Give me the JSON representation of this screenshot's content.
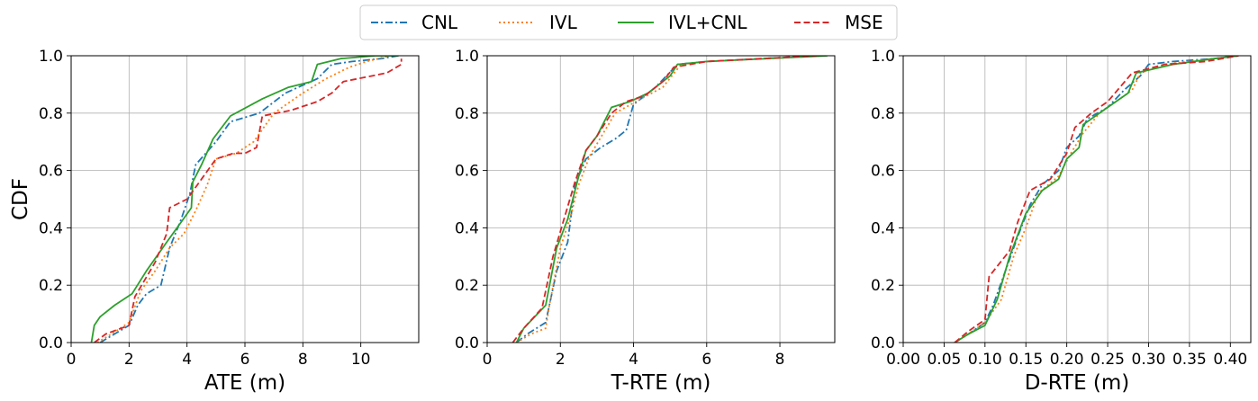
{
  "legend": {
    "placement": "top-center",
    "entries": [
      {
        "label": "CNL",
        "color": "#1f77b4",
        "dash": "dashdot"
      },
      {
        "label": "IVL",
        "color": "#ff7f0e",
        "dash": "dotted"
      },
      {
        "label": "IVL+CNL",
        "color": "#2ca02c",
        "dash": "solid"
      },
      {
        "label": "MSE",
        "color": "#d62728",
        "dash": "dashed"
      }
    ]
  },
  "chart_data": [
    {
      "type": "line",
      "xlabel": "ATE (m)",
      "ylabel": "CDF",
      "xlim": [
        0,
        12
      ],
      "ylim": [
        0,
        1.0
      ],
      "xticks": [
        "0",
        "2",
        "4",
        "6",
        "8",
        "10"
      ],
      "yticks": [
        "0.0",
        "0.2",
        "0.4",
        "0.6",
        "0.8",
        "1.0"
      ],
      "grid": true,
      "series": [
        {
          "name": "CNL",
          "x": [
            1.0,
            1.5,
            2.0,
            2.3,
            2.6,
            3.1,
            3.4,
            3.8,
            4.1,
            4.3,
            5.0,
            5.5,
            6.5,
            7.4,
            8.5,
            9.0,
            9.7,
            10.7,
            11.3
          ],
          "y": [
            0.0,
            0.03,
            0.06,
            0.13,
            0.17,
            0.2,
            0.33,
            0.43,
            0.52,
            0.62,
            0.7,
            0.77,
            0.8,
            0.87,
            0.92,
            0.97,
            0.98,
            0.99,
            1.0
          ]
        },
        {
          "name": "IVL",
          "x": [
            0.9,
            1.4,
            2.0,
            2.4,
            2.9,
            3.4,
            3.9,
            4.3,
            4.7,
            5.0,
            5.7,
            6.3,
            7.0,
            8.0,
            8.8,
            9.6,
            10.2,
            11.0
          ],
          "y": [
            0.0,
            0.03,
            0.07,
            0.18,
            0.25,
            0.33,
            0.38,
            0.46,
            0.55,
            0.64,
            0.66,
            0.7,
            0.8,
            0.87,
            0.92,
            0.96,
            0.98,
            1.0
          ]
        },
        {
          "name": "IVL+CNL",
          "x": [
            0.7,
            0.8,
            1.0,
            1.5,
            2.1,
            2.6,
            3.3,
            3.8,
            4.15,
            4.2,
            4.5,
            4.9,
            5.5,
            6.6,
            7.5,
            8.3,
            8.5,
            9.3,
            10.5,
            11.3
          ],
          "y": [
            0.0,
            0.06,
            0.09,
            0.13,
            0.17,
            0.25,
            0.35,
            0.42,
            0.47,
            0.56,
            0.62,
            0.71,
            0.79,
            0.85,
            0.89,
            0.91,
            0.97,
            0.99,
            1.0,
            1.0
          ]
        },
        {
          "name": "MSE",
          "x": [
            0.8,
            1.2,
            2.0,
            2.2,
            2.9,
            3.3,
            3.4,
            4.0,
            4.5,
            5.0,
            5.6,
            6.0,
            6.4,
            6.6,
            7.6,
            8.5,
            9.0,
            9.4,
            10.9,
            11.4,
            11.4
          ],
          "y": [
            0.0,
            0.03,
            0.06,
            0.16,
            0.28,
            0.38,
            0.47,
            0.5,
            0.57,
            0.64,
            0.66,
            0.66,
            0.68,
            0.79,
            0.81,
            0.84,
            0.87,
            0.91,
            0.94,
            0.97,
            0.99
          ]
        }
      ]
    },
    {
      "type": "line",
      "xlabel": "T-RTE (m)",
      "ylabel": "",
      "xlim": [
        0,
        9.5
      ],
      "ylim": [
        0,
        1.0
      ],
      "xticks": [
        "0",
        "2",
        "4",
        "6",
        "8"
      ],
      "yticks": [
        "0.0",
        "0.2",
        "0.4",
        "0.6",
        "0.8",
        "1.0"
      ],
      "grid": true,
      "series": [
        {
          "name": "CNL",
          "x": [
            0.8,
            1.1,
            1.6,
            1.9,
            2.2,
            2.4,
            2.7,
            3.1,
            3.5,
            3.8,
            4.0,
            4.2,
            4.6,
            5.2,
            6.0,
            9.0
          ],
          "y": [
            0.0,
            0.03,
            0.07,
            0.25,
            0.35,
            0.55,
            0.64,
            0.68,
            0.71,
            0.74,
            0.83,
            0.85,
            0.89,
            0.97,
            0.98,
            1.0
          ]
        },
        {
          "name": "IVL",
          "x": [
            0.8,
            1.2,
            1.6,
            1.7,
            2.0,
            2.3,
            2.5,
            2.8,
            3.5,
            4.2,
            4.8,
            5.3,
            6.0,
            9.2
          ],
          "y": [
            0.0,
            0.03,
            0.05,
            0.13,
            0.33,
            0.45,
            0.55,
            0.65,
            0.8,
            0.85,
            0.89,
            0.97,
            0.98,
            1.0
          ]
        },
        {
          "name": "IVL+CNL",
          "x": [
            0.8,
            1.0,
            1.6,
            1.9,
            2.2,
            2.5,
            2.7,
            3.0,
            3.4,
            3.9,
            4.4,
            5.0,
            5.2,
            6.0,
            9.3
          ],
          "y": [
            0.0,
            0.05,
            0.13,
            0.33,
            0.43,
            0.58,
            0.67,
            0.72,
            0.82,
            0.84,
            0.87,
            0.93,
            0.97,
            0.98,
            1.0
          ]
        },
        {
          "name": "MSE",
          "x": [
            0.7,
            1.0,
            1.5,
            1.8,
            2.1,
            2.4,
            2.7,
            3.0,
            3.4,
            3.8,
            4.3,
            4.8,
            5.1,
            6.0,
            9.0
          ],
          "y": [
            0.0,
            0.05,
            0.12,
            0.3,
            0.43,
            0.56,
            0.67,
            0.72,
            0.8,
            0.84,
            0.86,
            0.91,
            0.96,
            0.98,
            1.0
          ]
        }
      ]
    },
    {
      "type": "line",
      "xlabel": "D-RTE (m)",
      "ylabel": "",
      "xlim": [
        0.0,
        0.425
      ],
      "ylim": [
        0,
        1.0
      ],
      "xticks": [
        "0.00",
        "0.05",
        "0.10",
        "0.15",
        "0.20",
        "0.25",
        "0.30",
        "0.35",
        "0.40"
      ],
      "yticks": [
        "0.0",
        "0.2",
        "0.4",
        "0.6",
        "0.8",
        "1.0"
      ],
      "grid": true,
      "series": [
        {
          "name": "CNL",
          "x": [
            0.063,
            0.08,
            0.1,
            0.11,
            0.125,
            0.14,
            0.155,
            0.17,
            0.19,
            0.2,
            0.215,
            0.225,
            0.25,
            0.27,
            0.29,
            0.3,
            0.33,
            0.38,
            0.41
          ],
          "y": [
            0.0,
            0.03,
            0.07,
            0.13,
            0.25,
            0.37,
            0.48,
            0.55,
            0.6,
            0.68,
            0.72,
            0.78,
            0.82,
            0.88,
            0.93,
            0.97,
            0.98,
            0.99,
            1.0
          ]
        },
        {
          "name": "IVL",
          "x": [
            0.063,
            0.085,
            0.1,
            0.12,
            0.135,
            0.15,
            0.165,
            0.19,
            0.205,
            0.22,
            0.24,
            0.26,
            0.28,
            0.29,
            0.32,
            0.38,
            0.41
          ],
          "y": [
            0.0,
            0.04,
            0.07,
            0.15,
            0.3,
            0.4,
            0.52,
            0.58,
            0.66,
            0.73,
            0.8,
            0.84,
            0.88,
            0.94,
            0.97,
            0.99,
            1.0
          ]
        },
        {
          "name": "IVL+CNL",
          "x": [
            0.063,
            0.08,
            0.1,
            0.115,
            0.13,
            0.15,
            0.17,
            0.19,
            0.2,
            0.215,
            0.22,
            0.25,
            0.275,
            0.285,
            0.33,
            0.38,
            0.41
          ],
          "y": [
            0.0,
            0.03,
            0.06,
            0.15,
            0.3,
            0.45,
            0.53,
            0.57,
            0.64,
            0.68,
            0.76,
            0.82,
            0.87,
            0.94,
            0.97,
            0.99,
            1.0
          ]
        },
        {
          "name": "MSE",
          "x": [
            0.063,
            0.08,
            0.1,
            0.105,
            0.13,
            0.14,
            0.155,
            0.18,
            0.2,
            0.21,
            0.23,
            0.25,
            0.265,
            0.28,
            0.32,
            0.37,
            0.41
          ],
          "y": [
            0.0,
            0.04,
            0.08,
            0.23,
            0.32,
            0.42,
            0.53,
            0.57,
            0.66,
            0.75,
            0.8,
            0.84,
            0.89,
            0.94,
            0.97,
            0.98,
            1.0
          ]
        }
      ]
    }
  ]
}
